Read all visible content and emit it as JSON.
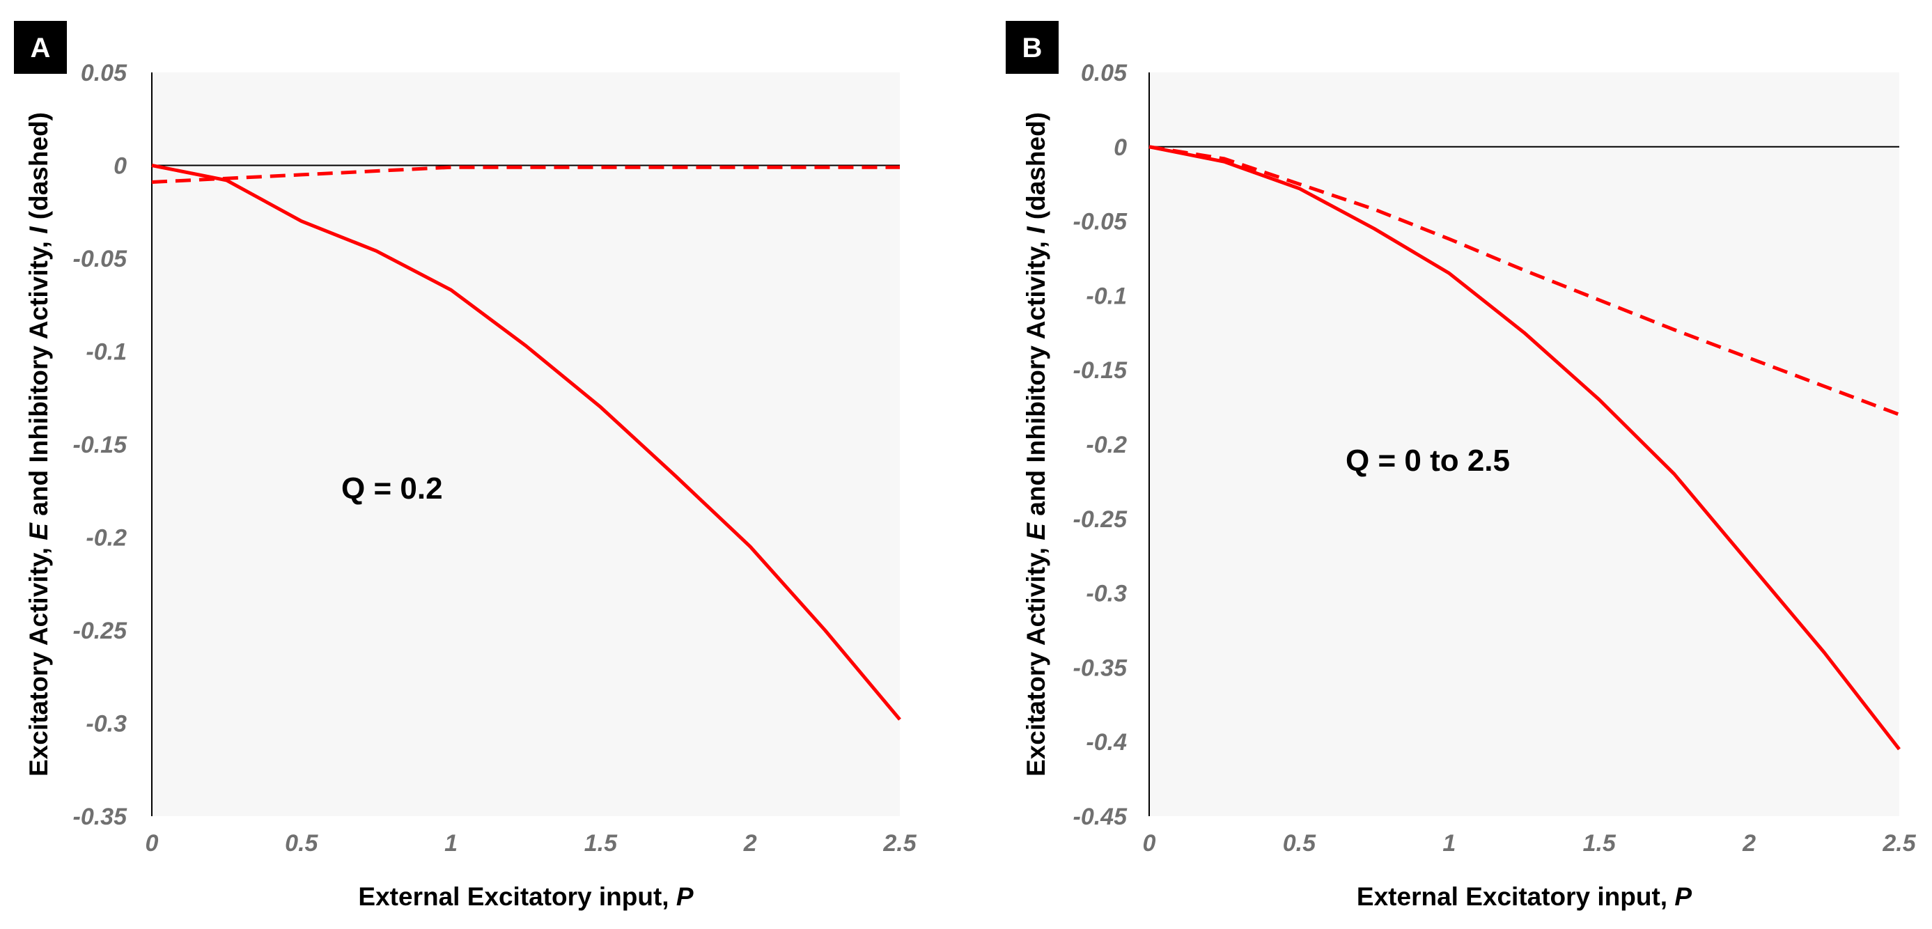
{
  "colors": {
    "series": "#ff0000",
    "plot_bg": "#f7f7f7",
    "tick_text": "#707070",
    "badge_bg": "#000000"
  },
  "chart_data": [
    {
      "type": "line",
      "panel_label": "A",
      "annotation": "Q = 0.2",
      "xlabel_prefix": "External Excitatory input, ",
      "xlabel_var": "P",
      "ylabel_parts": [
        "Excitatory Activity, ",
        "E",
        " and Inhibitory Activity, ",
        "I",
        " (dashed)"
      ],
      "xlim": [
        0,
        2.5
      ],
      "ylim": [
        -0.35,
        0.05
      ],
      "x_ticks": [
        0,
        0.5,
        1,
        1.5,
        2,
        2.5
      ],
      "x_tick_labels": [
        "0",
        "0.5",
        "1",
        "1.5",
        "2",
        "2.5"
      ],
      "y_ticks": [
        0.05,
        0,
        -0.05,
        -0.1,
        -0.15,
        -0.2,
        -0.25,
        -0.3,
        -0.35
      ],
      "y_tick_labels": [
        "0.05",
        "0",
        "-0.05",
        "-0.1",
        "-0.15",
        "-0.2",
        "-0.25",
        "-0.3",
        "-0.35"
      ],
      "series": [
        {
          "name": "E",
          "style": "solid",
          "x": [
            0,
            0.25,
            0.5,
            0.75,
            1,
            1.25,
            1.5,
            1.75,
            2,
            2.25,
            2.5
          ],
          "y": [
            0,
            -0.008,
            -0.03,
            -0.046,
            -0.067,
            -0.097,
            -0.13,
            -0.167,
            -0.205,
            -0.25,
            -0.298
          ]
        },
        {
          "name": "I",
          "style": "dashed",
          "x": [
            0,
            0.5,
            1,
            1.5,
            2,
            2.5
          ],
          "y": [
            -0.009,
            -0.005,
            -0.001,
            -0.001,
            -0.001,
            -0.001
          ]
        }
      ]
    },
    {
      "type": "line",
      "panel_label": "B",
      "annotation": "Q = 0 to 2.5",
      "xlabel_prefix": "External Excitatory input, ",
      "xlabel_var": "P",
      "ylabel_parts": [
        "Excitatory Activity, ",
        "E",
        " and Inhibitory Activity, ",
        "I",
        " (dashed)"
      ],
      "xlim": [
        0,
        2.5
      ],
      "ylim": [
        -0.45,
        0.05
      ],
      "x_ticks": [
        0,
        0.5,
        1,
        1.5,
        2,
        2.5
      ],
      "x_tick_labels": [
        "0",
        "0.5",
        "1",
        "1.5",
        "2",
        "2.5"
      ],
      "y_ticks": [
        0.05,
        0,
        -0.05,
        -0.1,
        -0.15,
        -0.2,
        -0.25,
        -0.3,
        -0.35,
        -0.4,
        -0.45
      ],
      "y_tick_labels": [
        "0.05",
        "0",
        "-0.05",
        "-0.1",
        "-0.15",
        "-0.2",
        "-0.25",
        "-0.3",
        "-0.35",
        "-0.4",
        "-0.45"
      ],
      "series": [
        {
          "name": "E",
          "style": "solid",
          "x": [
            0,
            0.25,
            0.5,
            0.75,
            1,
            1.25,
            1.5,
            1.75,
            2,
            2.25,
            2.5
          ],
          "y": [
            0,
            -0.01,
            -0.028,
            -0.055,
            -0.085,
            -0.125,
            -0.17,
            -0.22,
            -0.28,
            -0.34,
            -0.405
          ]
        },
        {
          "name": "I",
          "style": "dashed",
          "x": [
            0,
            0.25,
            0.5,
            0.75,
            1,
            1.25,
            1.5,
            1.75,
            2,
            2.25,
            2.5
          ],
          "y": [
            0,
            -0.008,
            -0.025,
            -0.042,
            -0.062,
            -0.083,
            -0.103,
            -0.123,
            -0.142,
            -0.161,
            -0.18
          ]
        }
      ]
    }
  ]
}
